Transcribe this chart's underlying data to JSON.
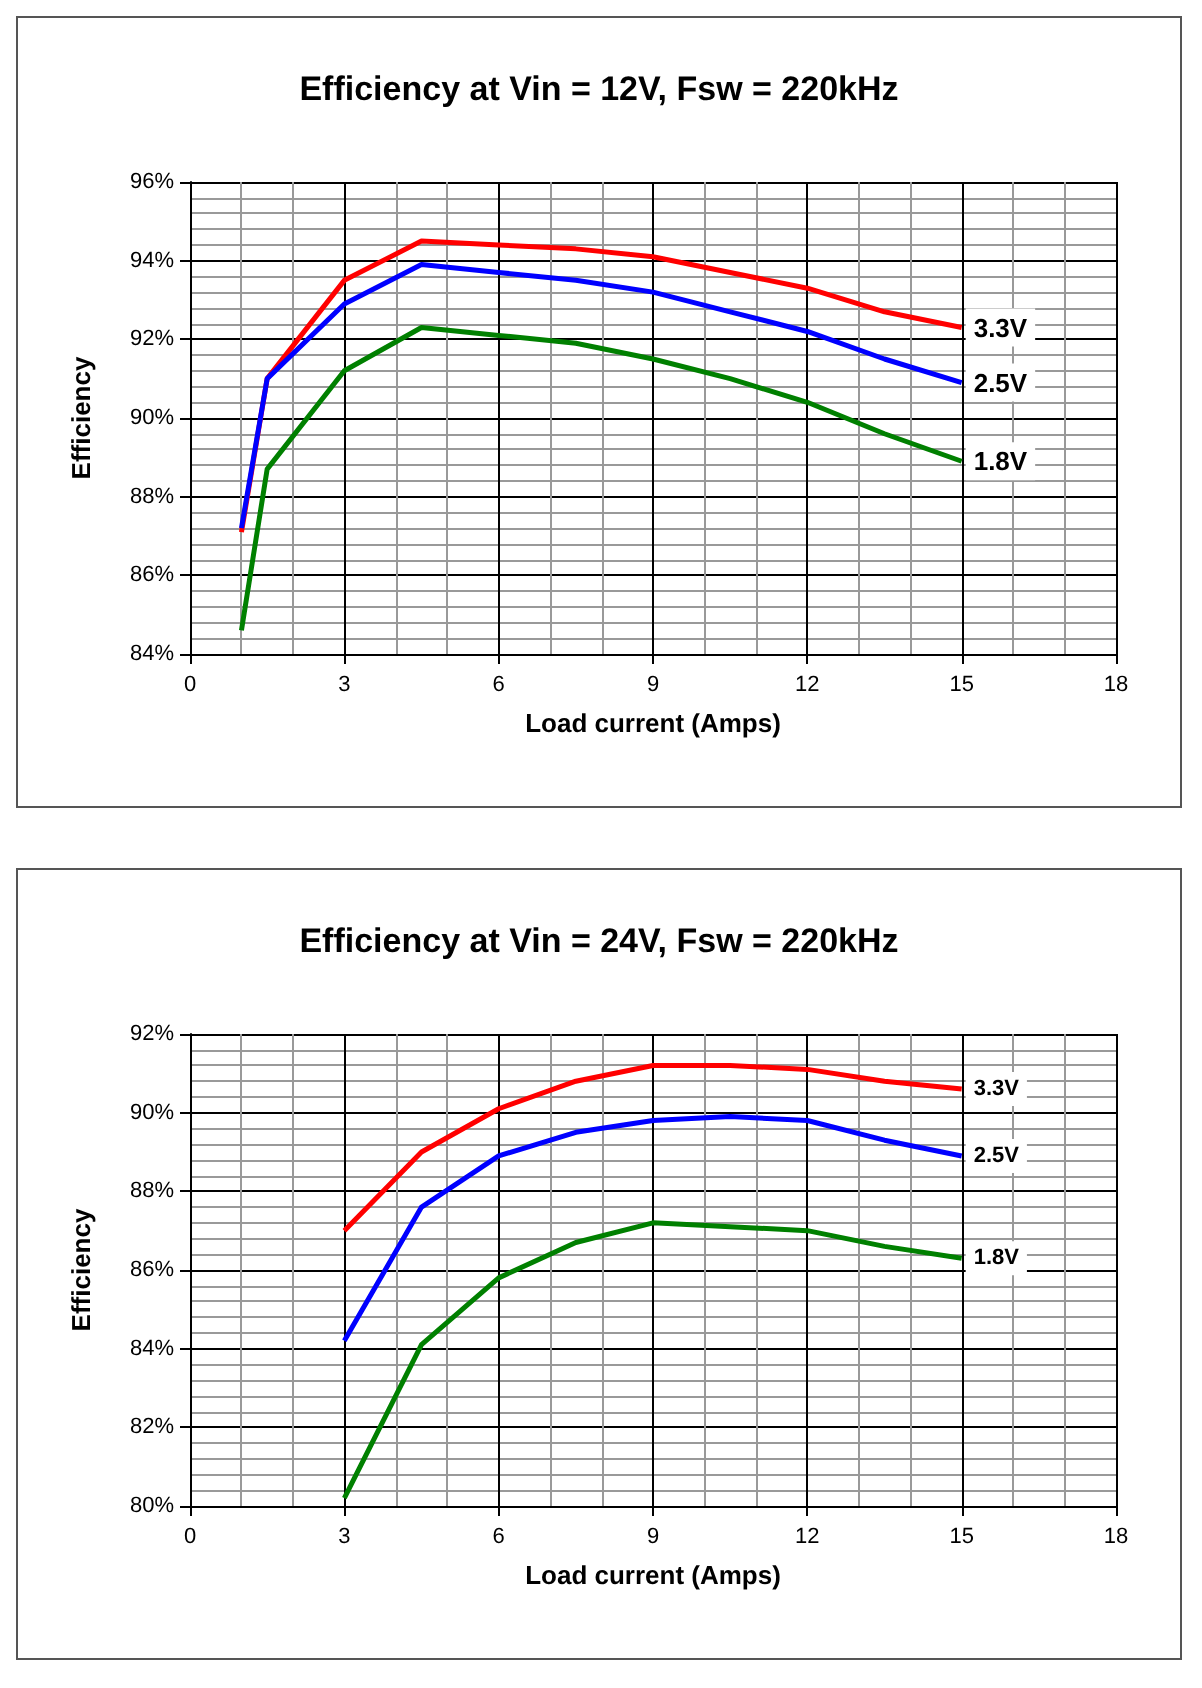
{
  "chart_data": [
    {
      "type": "line",
      "title": "Efficiency at Vin = 12V, Fsw = 220kHz",
      "xlabel": "Load current (Amps)",
      "ylabel": "Efficiency",
      "x": [
        1,
        1.5,
        3,
        4.5,
        6,
        7.5,
        9,
        10.5,
        12,
        13.5,
        15
      ],
      "series": [
        {
          "name": "3.3V",
          "color": "#ff0000",
          "values": [
            87.1,
            91.0,
            93.5,
            94.5,
            94.4,
            94.3,
            94.1,
            93.7,
            93.3,
            92.7,
            92.3
          ]
        },
        {
          "name": "2.5V",
          "color": "#0000ff",
          "values": [
            87.2,
            91.0,
            92.9,
            93.9,
            93.7,
            93.5,
            93.2,
            92.7,
            92.2,
            91.5,
            90.9
          ]
        },
        {
          "name": "1.8V",
          "color": "#008000",
          "values": [
            84.6,
            88.7,
            91.2,
            92.3,
            92.1,
            91.9,
            91.5,
            91.0,
            90.4,
            89.6,
            88.9
          ]
        }
      ],
      "xlim": [
        0,
        18
      ],
      "xticks": [
        0,
        3,
        6,
        9,
        12,
        15,
        18
      ],
      "ylim": [
        84,
        96
      ],
      "yticks": [
        {
          "value": 84,
          "label": "84%"
        },
        {
          "value": 86,
          "label": "86%"
        },
        {
          "value": 88,
          "label": "88%"
        },
        {
          "value": 90,
          "label": "90%"
        },
        {
          "value": 92,
          "label": "92%"
        },
        {
          "value": 94,
          "label": "94%"
        },
        {
          "value": 96,
          "label": "96%"
        }
      ],
      "grid": true,
      "legend": false,
      "marker": "none",
      "line_style": "solid"
    },
    {
      "type": "line",
      "title": "Efficiency at Vin = 24V, Fsw = 220kHz",
      "xlabel": "Load current (Amps)",
      "ylabel": "Efficiency",
      "x": [
        3,
        4.5,
        6,
        7.5,
        9,
        10.5,
        12,
        13.5,
        15
      ],
      "series": [
        {
          "name": "3.3V",
          "color": "#ff0000",
          "values": [
            87.0,
            89.0,
            90.1,
            90.8,
            91.2,
            91.2,
            91.1,
            90.8,
            90.6
          ]
        },
        {
          "name": "2.5V",
          "color": "#0000ff",
          "values": [
            84.2,
            87.6,
            88.9,
            89.5,
            89.8,
            89.9,
            89.8,
            89.3,
            88.9
          ]
        },
        {
          "name": "1.8V",
          "color": "#008000",
          "values": [
            80.2,
            84.1,
            85.8,
            86.7,
            87.2,
            87.1,
            87.0,
            86.6,
            86.3
          ]
        }
      ],
      "xlim": [
        0,
        18
      ],
      "xticks": [
        0,
        3,
        6,
        9,
        12,
        15,
        18
      ],
      "ylim": [
        80,
        92
      ],
      "yticks": [
        {
          "value": 80,
          "label": "80%"
        },
        {
          "value": 82,
          "label": "82%"
        },
        {
          "value": 84,
          "label": "84%"
        },
        {
          "value": 86,
          "label": "86%"
        },
        {
          "value": 88,
          "label": "88%"
        },
        {
          "value": 90,
          "label": "90%"
        },
        {
          "value": 92,
          "label": "92%"
        }
      ],
      "grid": true,
      "legend": false,
      "marker": "none",
      "line_style": "solid"
    }
  ]
}
